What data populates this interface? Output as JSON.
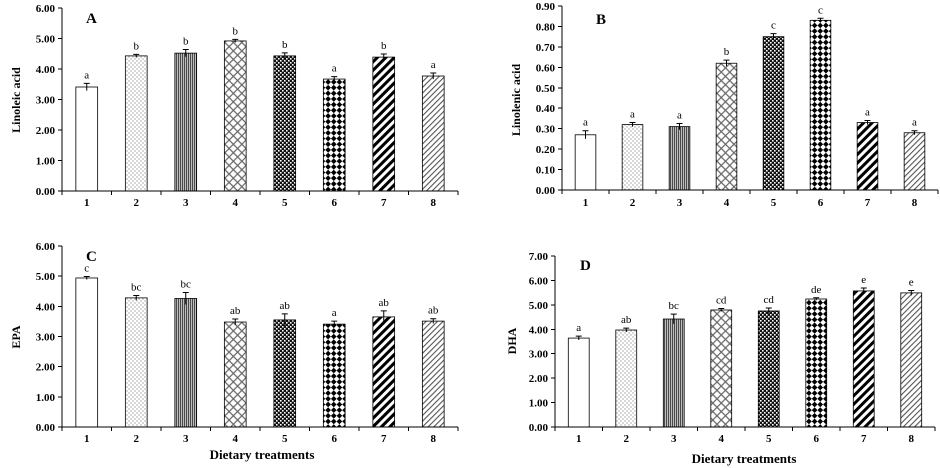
{
  "chart_data": [
    {
      "panel_label": "A",
      "type": "bar",
      "categories": [
        "1",
        "2",
        "3",
        "4",
        "5",
        "6",
        "7",
        "8"
      ],
      "values": [
        3.41,
        4.43,
        4.52,
        4.92,
        4.43,
        3.67,
        4.39,
        3.77
      ],
      "errors": [
        0.12,
        0.05,
        0.12,
        0.05,
        0.1,
        0.08,
        0.1,
        0.1
      ],
      "letters": [
        "a",
        "b",
        "b",
        "b",
        "b",
        "a",
        "b",
        "a"
      ],
      "ylabel": "Linoleic acid",
      "ylim": [
        0,
        6
      ],
      "yticks": [
        "0.00",
        "1.00",
        "2.00",
        "3.00",
        "4.00",
        "5.00",
        "6.00"
      ],
      "grid": false
    },
    {
      "panel_label": "B",
      "type": "bar",
      "categories": [
        "1",
        "2",
        "3",
        "4",
        "5",
        "6",
        "7",
        "8"
      ],
      "values": [
        0.27,
        0.32,
        0.31,
        0.62,
        0.75,
        0.83,
        0.33,
        0.28
      ],
      "errors": [
        0.02,
        0.01,
        0.015,
        0.015,
        0.015,
        0.01,
        0.01,
        0.01
      ],
      "letters": [
        "a",
        "a",
        "a",
        "b",
        "c",
        "c",
        "a",
        "a"
      ],
      "ylabel": "Linolenic acid",
      "ylim": [
        0,
        0.9
      ],
      "yticks": [
        "0.00",
        "0.10",
        "0.20",
        "0.30",
        "0.40",
        "0.50",
        "0.60",
        "0.70",
        "0.80",
        "0.90"
      ],
      "grid": false
    },
    {
      "panel_label": "C",
      "type": "bar",
      "categories": [
        "1",
        "2",
        "3",
        "4",
        "5",
        "6",
        "7",
        "8"
      ],
      "values": [
        4.94,
        4.28,
        4.26,
        3.48,
        3.55,
        3.41,
        3.65,
        3.51
      ],
      "errors": [
        0.05,
        0.08,
        0.2,
        0.1,
        0.2,
        0.1,
        0.2,
        0.08
      ],
      "letters": [
        "c",
        "bc",
        "bc",
        "ab",
        "ab",
        "a",
        "ab",
        "ab"
      ],
      "xlabel": "Dietary treatments",
      "ylabel": "EPA",
      "ylim": [
        0,
        6
      ],
      "yticks": [
        "0.00",
        "1.00",
        "2.00",
        "3.00",
        "4.00",
        "5.00",
        "6.00"
      ],
      "grid": false
    },
    {
      "panel_label": "D",
      "type": "bar",
      "categories": [
        "1",
        "2",
        "3",
        "4",
        "5",
        "6",
        "7",
        "8"
      ],
      "values": [
        3.64,
        3.97,
        4.42,
        4.79,
        4.75,
        5.24,
        5.57,
        5.49
      ],
      "errors": [
        0.08,
        0.08,
        0.2,
        0.06,
        0.12,
        0.05,
        0.12,
        0.1
      ],
      "letters": [
        "a",
        "ab",
        "bc",
        "cd",
        "cd",
        "de",
        "e",
        "e"
      ],
      "xlabel": "Dietary treatments",
      "ylabel": "DHA",
      "ylim": [
        0,
        7
      ],
      "yticks": [
        "0.00",
        "1.00",
        "2.00",
        "3.00",
        "4.00",
        "5.00",
        "6.00",
        "7.00"
      ],
      "grid": false
    }
  ]
}
